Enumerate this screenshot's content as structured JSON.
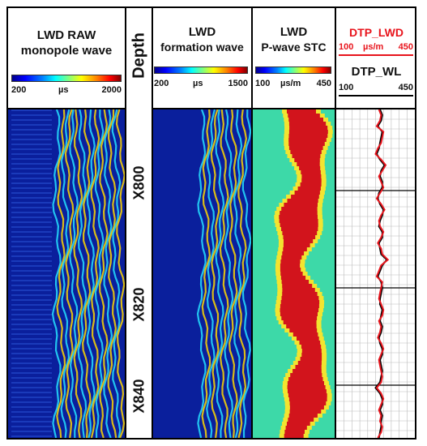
{
  "tracks": [
    {
      "title1": "LWD RAW",
      "title2": "monopole wave",
      "scale_min": "200",
      "scale_unit": "µs",
      "scale_max": "2000"
    },
    {
      "title1": "LWD",
      "title2": "formation wave",
      "scale_min": "200",
      "scale_unit": "µs",
      "scale_max": "1500"
    },
    {
      "title1": "LWD",
      "title2": "P-wave STC",
      "scale_min": "100",
      "scale_unit": "µs/m",
      "scale_max": "450"
    }
  ],
  "depth_header": "Depth",
  "depth_labels": [
    "X800",
    "X820",
    "X840"
  ],
  "log_track": {
    "curve1_name": "DTP_LWD",
    "curve1_min": "100",
    "curve1_unit": "µs/m",
    "curve1_max": "450",
    "curve2_name": "DTP_WL",
    "curve2_min": "100",
    "curve2_max": "450"
  },
  "colors": {
    "lwd_curve": "#e8141c",
    "wl_curve": "#000000",
    "wave_bg": "#0a1f9c",
    "stc_bg": "#3dd9a8"
  },
  "chart_data": {
    "type": "line",
    "depth_ticks": [
      "X800",
      "X820",
      "X840"
    ],
    "xlim": [
      100,
      450
    ],
    "x_unit": "µs/m",
    "series": [
      {
        "name": "DTP_LWD",
        "color": "#e8141c",
        "values": [
          290,
          300,
          295,
          280,
          310,
          305,
          300,
          285,
          275,
          300,
          320,
          305,
          290,
          300,
          310,
          295,
          280,
          300,
          315,
          300,
          290,
          295,
          310,
          300,
          285,
          300,
          305,
          330,
          300,
          290,
          280,
          305,
          300,
          295,
          290,
          300,
          310,
          305,
          290,
          300,
          295,
          285,
          300,
          310,
          300,
          290,
          295,
          300,
          305,
          300,
          280,
          300,
          310,
          300,
          290,
          300,
          295,
          305,
          300,
          285
        ]
      },
      {
        "name": "DTP_WL",
        "color": "#000000",
        "values": [
          295,
          305,
          300,
          285,
          305,
          300,
          295,
          290,
          280,
          295,
          315,
          300,
          295,
          305,
          305,
          290,
          285,
          295,
          310,
          305,
          295,
          290,
          305,
          305,
          290,
          295,
          300,
          325,
          305,
          295,
          285,
          300,
          305,
          300,
          295,
          295,
          305,
          300,
          295,
          305,
          300,
          290,
          295,
          305,
          305,
          295,
          300,
          305,
          300,
          295,
          275,
          295,
          305,
          305,
          295,
          305,
          300,
          300,
          295,
          290
        ]
      }
    ]
  }
}
